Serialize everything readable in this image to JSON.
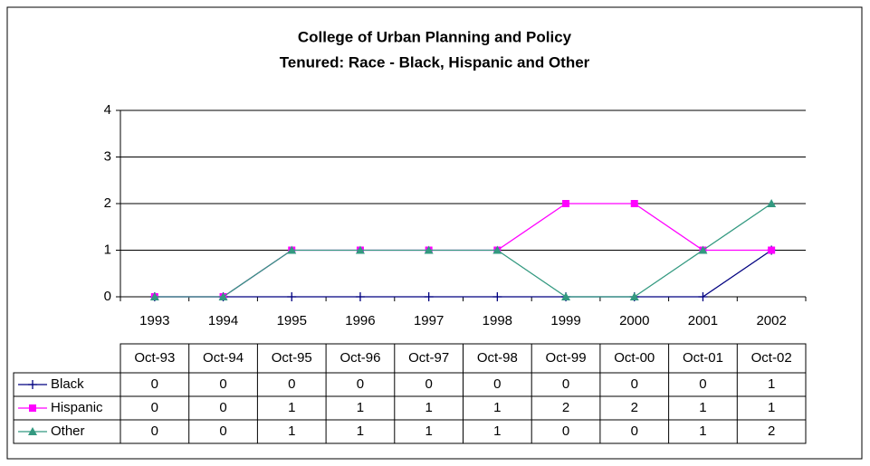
{
  "chart_data": {
    "type": "line",
    "title": "College of Urban Planning and Policy",
    "subtitle": "Tenured: Race - Black, Hispanic and Other",
    "categories": [
      "1993",
      "1994",
      "1995",
      "1996",
      "1997",
      "1998",
      "1999",
      "2000",
      "2001",
      "2002"
    ],
    "table_columns": [
      "Oct-93",
      "Oct-94",
      "Oct-95",
      "Oct-96",
      "Oct-97",
      "Oct-98",
      "Oct-99",
      "Oct-00",
      "Oct-01",
      "Oct-02"
    ],
    "series": [
      {
        "name": "Black",
        "color": "#000080",
        "marker": "plus",
        "values": [
          0,
          0,
          0,
          0,
          0,
          0,
          0,
          0,
          0,
          1
        ]
      },
      {
        "name": "Hispanic",
        "color": "#ff00ff",
        "marker": "square",
        "values": [
          0,
          0,
          1,
          1,
          1,
          1,
          2,
          2,
          1,
          1
        ]
      },
      {
        "name": "Other",
        "color": "#339980",
        "marker": "triangle",
        "values": [
          0,
          0,
          1,
          1,
          1,
          1,
          0,
          0,
          1,
          2
        ]
      }
    ],
    "ylim": [
      0,
      4
    ],
    "yticks": [
      0,
      1,
      2,
      3,
      4
    ],
    "grid": true
  }
}
